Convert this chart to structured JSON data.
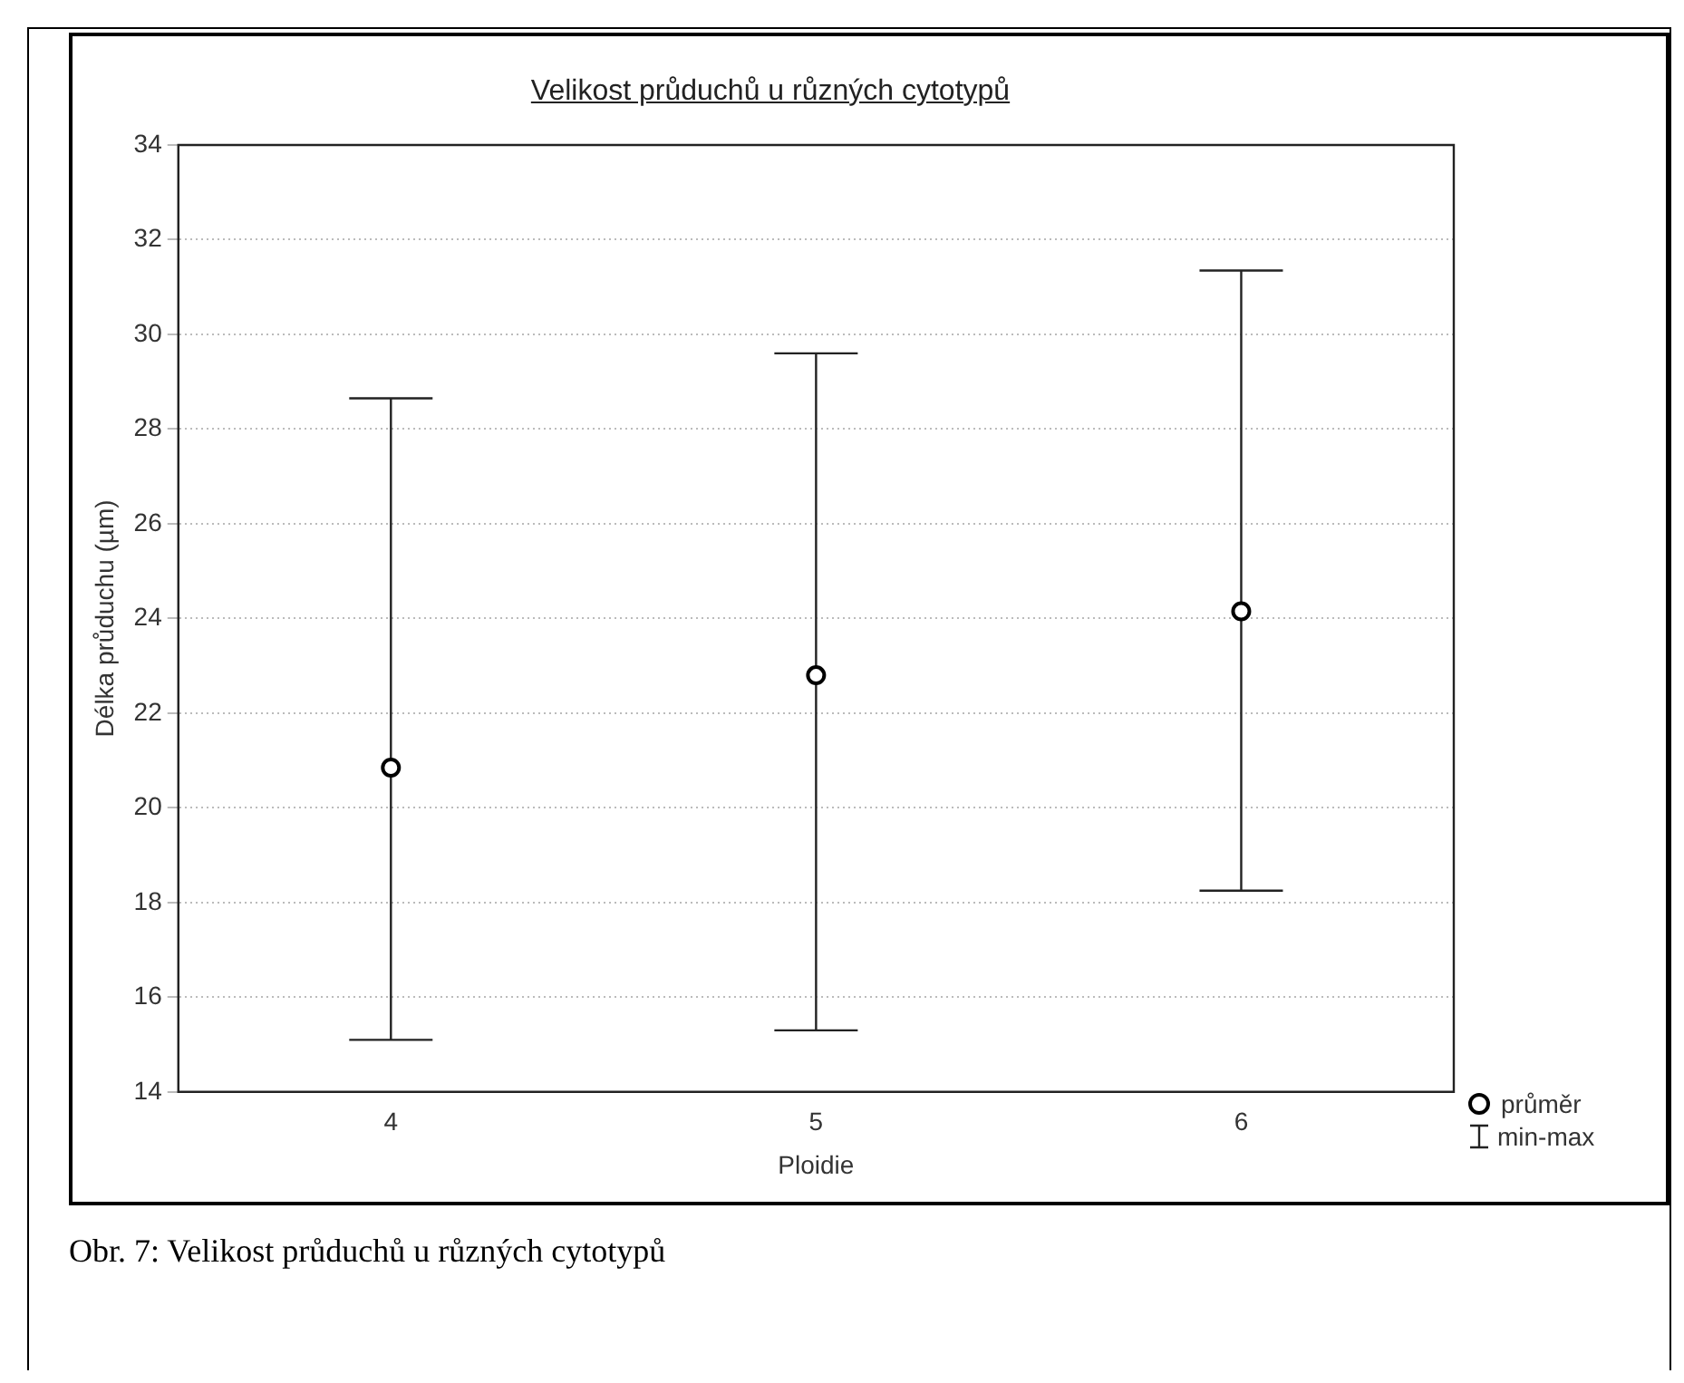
{
  "chart_data": {
    "type": "scatter",
    "title": "Velikost průduchů u různých cytotypů",
    "xlabel": "Ploidie",
    "ylabel": "Délka průduchu (µm)",
    "categories": [
      "4",
      "5",
      "6"
    ],
    "series": [
      {
        "name": "průměr",
        "color": "#000000",
        "values": [
          20.85,
          22.8,
          24.15
        ],
        "errors": [
          [
            15.1,
            28.65
          ],
          [
            15.3,
            29.6
          ],
          [
            18.25,
            31.35
          ]
        ]
      }
    ],
    "ylim": [
      14,
      34
    ],
    "yticks": [
      14,
      16,
      18,
      20,
      22,
      24,
      26,
      28,
      30,
      32,
      34
    ],
    "grid": "y",
    "legend": "bottom right",
    "marker": "circle",
    "annotations": [
      "min-max",
      "Obr. 7: Velikost průduchů u různých cytotypů"
    ]
  }
}
